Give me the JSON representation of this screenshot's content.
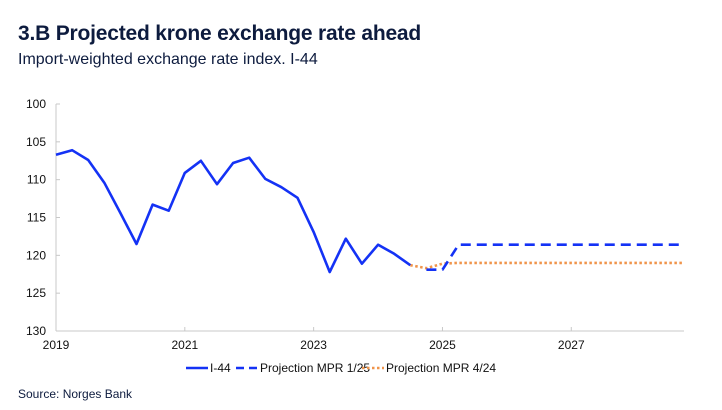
{
  "header": {
    "title": "3.B Projected krone exchange rate ahead",
    "subtitle": "Import-weighted exchange rate index. I-44"
  },
  "footer": {
    "source": "Source: Norges Bank"
  },
  "colors": {
    "actual": "#1432f5",
    "mpr_1_25": "#1432f5",
    "mpr_4_24": "#f0944a",
    "axis": "#c8c8c8"
  },
  "chart_data": {
    "type": "line",
    "title": "3.B Projected krone exchange rate ahead",
    "subtitle": "Import-weighted exchange rate index. I-44",
    "xlabel": "",
    "ylabel": "",
    "y_inverted": true,
    "ylim": [
      100,
      130
    ],
    "yticks": [
      100,
      105,
      110,
      115,
      120,
      125,
      130
    ],
    "xlim": [
      2019.0,
      2028.75
    ],
    "xticks": [
      2019,
      2021,
      2023,
      2025,
      2027
    ],
    "grid": false,
    "legend_position": "bottom",
    "series": [
      {
        "name": "I-44",
        "style": "solid",
        "color": "#1432f5",
        "x": [
          2019.0,
          2019.25,
          2019.5,
          2019.75,
          2020.0,
          2020.25,
          2020.5,
          2020.75,
          2021.0,
          2021.25,
          2021.5,
          2021.75,
          2022.0,
          2022.25,
          2022.5,
          2022.75,
          2023.0,
          2023.25,
          2023.5,
          2023.75,
          2024.0,
          2024.25,
          2024.5
        ],
        "values": [
          106.7,
          106.1,
          107.4,
          110.4,
          114.4,
          118.5,
          113.3,
          114.1,
          109.1,
          107.5,
          110.6,
          107.8,
          107.1,
          109.9,
          111.0,
          112.4,
          116.9,
          122.2,
          117.8,
          121.1,
          118.6,
          119.8,
          121.3
        ]
      },
      {
        "name": "Projection MPR 1/25",
        "style": "dashed",
        "color": "#1432f5",
        "x": [
          2024.75,
          2025.0,
          2025.25,
          2025.5,
          2026.0,
          2026.5,
          2027.0,
          2027.5,
          2028.0,
          2028.75
        ],
        "values": [
          121.9,
          121.9,
          118.6,
          118.6,
          118.6,
          118.6,
          118.6,
          118.6,
          118.6,
          118.6
        ]
      },
      {
        "name": "Projection MPR 4/24",
        "style": "dotted",
        "color": "#f0944a",
        "x": [
          2024.5,
          2024.75,
          2025.0,
          2025.25,
          2025.5,
          2026.0,
          2026.5,
          2027.0,
          2027.5,
          2028.0,
          2028.75
        ],
        "values": [
          121.3,
          121.7,
          121.1,
          121.0,
          121.0,
          121.0,
          121.0,
          121.0,
          121.0,
          121.0,
          121.0
        ]
      }
    ]
  }
}
